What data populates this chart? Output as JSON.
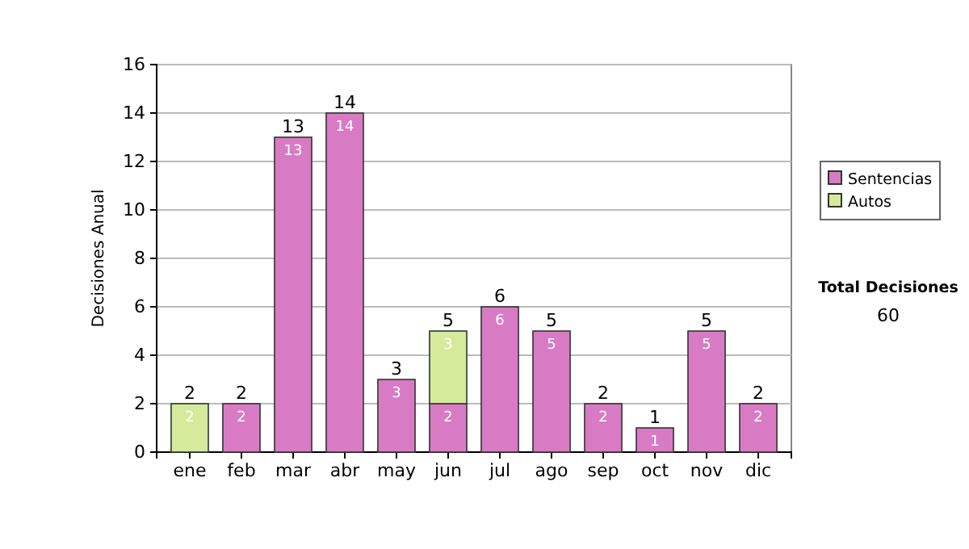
{
  "chart_data": {
    "type": "bar",
    "stacked": true,
    "ylabel": "Decisiones Anual",
    "categories": [
      "ene",
      "feb",
      "mar",
      "abr",
      "may",
      "jun",
      "jul",
      "ago",
      "sep",
      "oct",
      "nov",
      "dic"
    ],
    "series": [
      {
        "name": "Sentencias",
        "color": "#d97bc4",
        "values": [
          0,
          2,
          13,
          14,
          3,
          2,
          6,
          5,
          2,
          1,
          5,
          2
        ],
        "value_labels": [
          null,
          "2",
          "13",
          "14",
          "3",
          "2",
          "6",
          "5",
          "2",
          "1",
          "5",
          "2"
        ]
      },
      {
        "name": "Autos",
        "color": "#d6ea9c",
        "values": [
          2,
          0,
          0,
          0,
          0,
          3,
          0,
          0,
          0,
          0,
          0,
          0
        ],
        "value_labels": [
          "2",
          null,
          null,
          null,
          null,
          "3",
          null,
          null,
          null,
          null,
          null,
          null
        ]
      }
    ],
    "totals": [
      "2",
      "2",
      "13",
      "14",
      "3",
      "5",
      "6",
      "5",
      "2",
      "1",
      "5",
      "2"
    ],
    "ylim": [
      0,
      16
    ],
    "yticks": [
      0,
      2,
      4,
      6,
      8,
      10,
      12,
      14,
      16
    ],
    "grid": "y",
    "legend": "right",
    "annotations": [
      "Total Decisiones",
      "60"
    ]
  }
}
